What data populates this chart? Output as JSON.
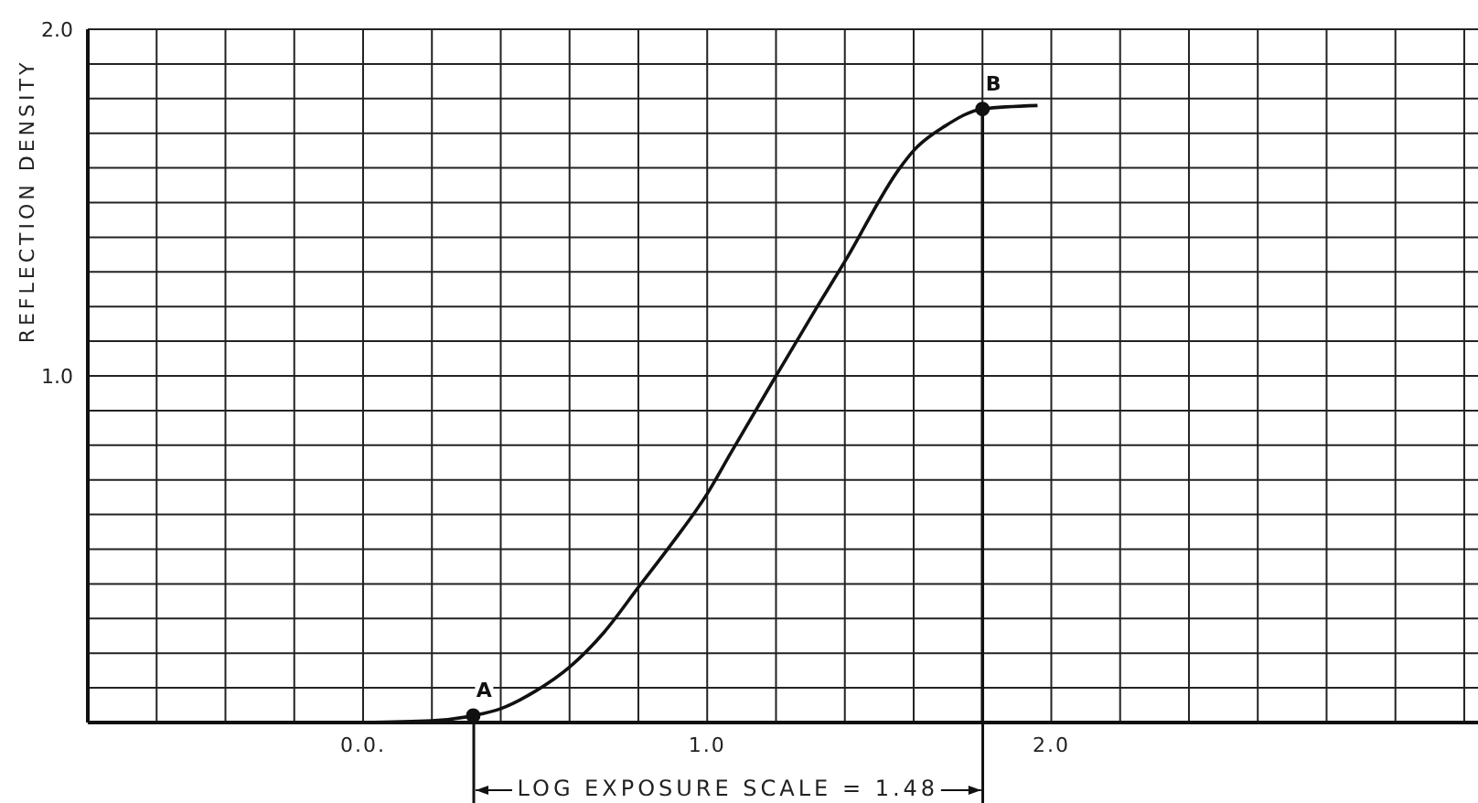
{
  "chart_data": {
    "type": "line",
    "ylabel": "REFLECTION DENSITY",
    "xlim": [
      -0.8,
      3.24
    ],
    "ylim": [
      0,
      2.0
    ],
    "xticks": [
      {
        "value": -0.8,
        "label": null
      },
      {
        "value": -0.6,
        "label": null
      },
      {
        "value": -0.4,
        "label": null
      },
      {
        "value": -0.2,
        "label": null
      },
      {
        "value": 0,
        "label": "0.0."
      },
      {
        "value": 0.2,
        "label": null
      },
      {
        "value": 0.4,
        "label": null
      },
      {
        "value": 0.6,
        "label": null
      },
      {
        "value": 0.8,
        "label": null
      },
      {
        "value": 1,
        "label": "1.0"
      },
      {
        "value": 1.2,
        "label": null
      },
      {
        "value": 1.4,
        "label": null
      },
      {
        "value": 1.6,
        "label": null
      },
      {
        "value": 1.8,
        "label": null
      },
      {
        "value": 2,
        "label": "2.0"
      },
      {
        "value": 2.2,
        "label": null
      },
      {
        "value": 2.4,
        "label": null
      },
      {
        "value": 2.6,
        "label": null
      },
      {
        "value": 2.8,
        "label": null
      },
      {
        "value": 3.0,
        "label": null
      },
      {
        "value": 3.2,
        "label": null
      }
    ],
    "yticks": [
      {
        "value": 0,
        "label": null
      },
      {
        "value": 0.1,
        "label": null
      },
      {
        "value": 0.2,
        "label": null
      },
      {
        "value": 0.3,
        "label": null
      },
      {
        "value": 0.4,
        "label": null
      },
      {
        "value": 0.5,
        "label": null
      },
      {
        "value": 0.6,
        "label": null
      },
      {
        "value": 0.7,
        "label": null
      },
      {
        "value": 0.8,
        "label": null
      },
      {
        "value": 0.9,
        "label": null
      },
      {
        "value": 1,
        "label": "1.0"
      },
      {
        "value": 1.1,
        "label": null
      },
      {
        "value": 1.2,
        "label": null
      },
      {
        "value": 1.3,
        "label": null
      },
      {
        "value": 1.4,
        "label": null
      },
      {
        "value": 1.5,
        "label": null
      },
      {
        "value": 1.6,
        "label": null
      },
      {
        "value": 1.7,
        "label": null
      },
      {
        "value": 1.8,
        "label": null
      },
      {
        "value": 1.9,
        "label": null
      },
      {
        "value": 2,
        "label": "2.0"
      }
    ],
    "grid": true,
    "marker": "none",
    "line_style": "solid",
    "series": [
      {
        "color": "#111111",
        "x": [
          0,
          0.2,
          0.32,
          0.4,
          0.5,
          0.6,
          0.7,
          0.8,
          0.9,
          1.0,
          1.07,
          1.2,
          1.32,
          1.4,
          1.56,
          1.6,
          1.69,
          1.8,
          1.96
        ],
        "values": [
          0,
          0.005,
          0.02,
          0.04,
          0.09,
          0.16,
          0.26,
          0.39,
          0.52,
          0.66,
          0.78,
          1.0,
          1.2,
          1.33,
          1.6,
          1.65,
          1.72,
          1.77,
          1.78
        ]
      }
    ],
    "ref_lines": [
      {
        "axis": "x",
        "value": 1.8,
        "color": "#111111"
      }
    ],
    "annotations": [
      {
        "text": "A",
        "x": 0.32,
        "y": 0.02
      },
      {
        "text": "B",
        "x": 1.8,
        "y": 1.77
      },
      "LOG EXPOSURE SCALE = 1.48"
    ]
  }
}
